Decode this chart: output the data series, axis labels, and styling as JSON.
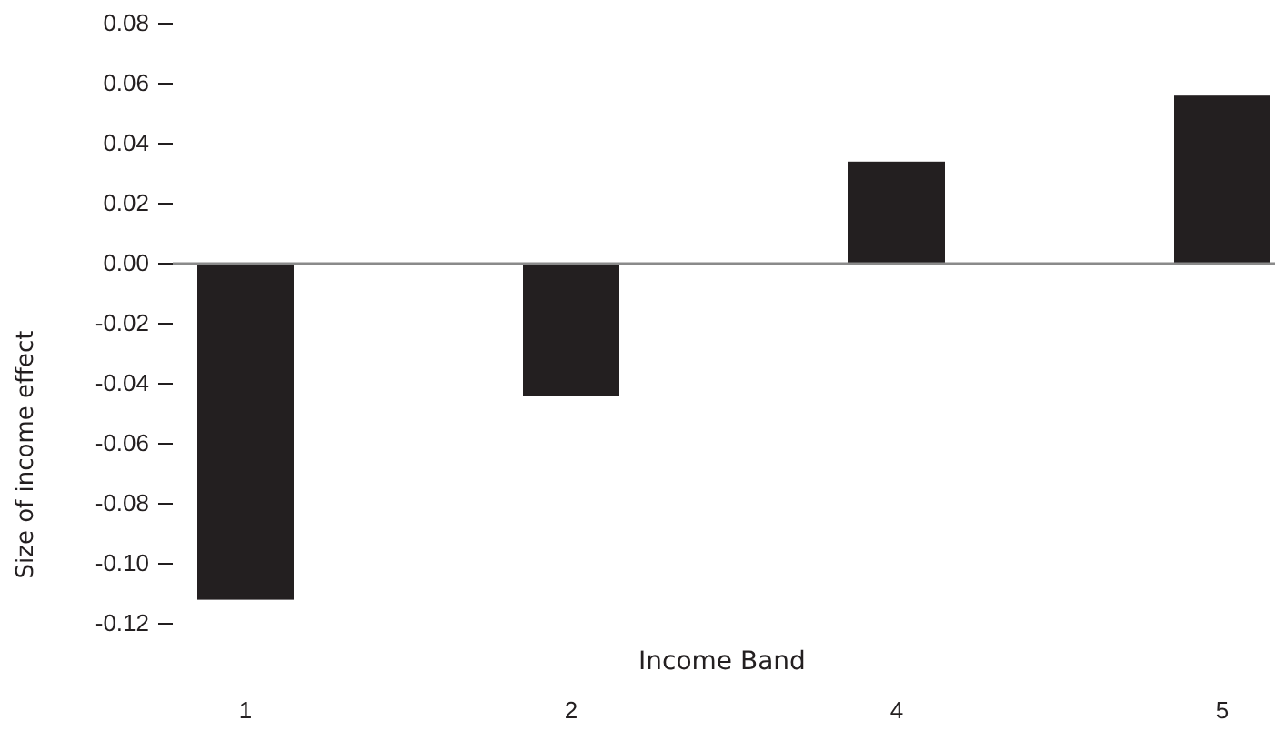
{
  "chart_data": {
    "type": "bar",
    "xlabel": "Income Band",
    "ylabel": "Size of income effect",
    "categories": [
      "1",
      "2",
      "4",
      "5"
    ],
    "values": [
      -0.112,
      -0.044,
      0.034,
      0.056
    ],
    "color": "#231f20",
    "ylim": [
      -0.12,
      0.08
    ],
    "yticks": [
      {
        "value": -0.12,
        "label": "-0.12"
      },
      {
        "value": -0.1,
        "label": "-0.10"
      },
      {
        "value": -0.08,
        "label": "-0.08"
      },
      {
        "value": -0.06,
        "label": "-0.06"
      },
      {
        "value": -0.04,
        "label": "-0.04"
      },
      {
        "value": -0.02,
        "label": "-0.02"
      },
      {
        "value": 0,
        "label": "0.00"
      },
      {
        "value": 0.02,
        "label": "0.02"
      },
      {
        "value": 0.04,
        "label": "0.04"
      },
      {
        "value": 0.06,
        "label": "0.06"
      },
      {
        "value": 0.08,
        "label": "0.08"
      }
    ],
    "ref_lines": [
      {
        "axis": "y",
        "value": 0,
        "color": "#8a8a8a"
      }
    ]
  }
}
